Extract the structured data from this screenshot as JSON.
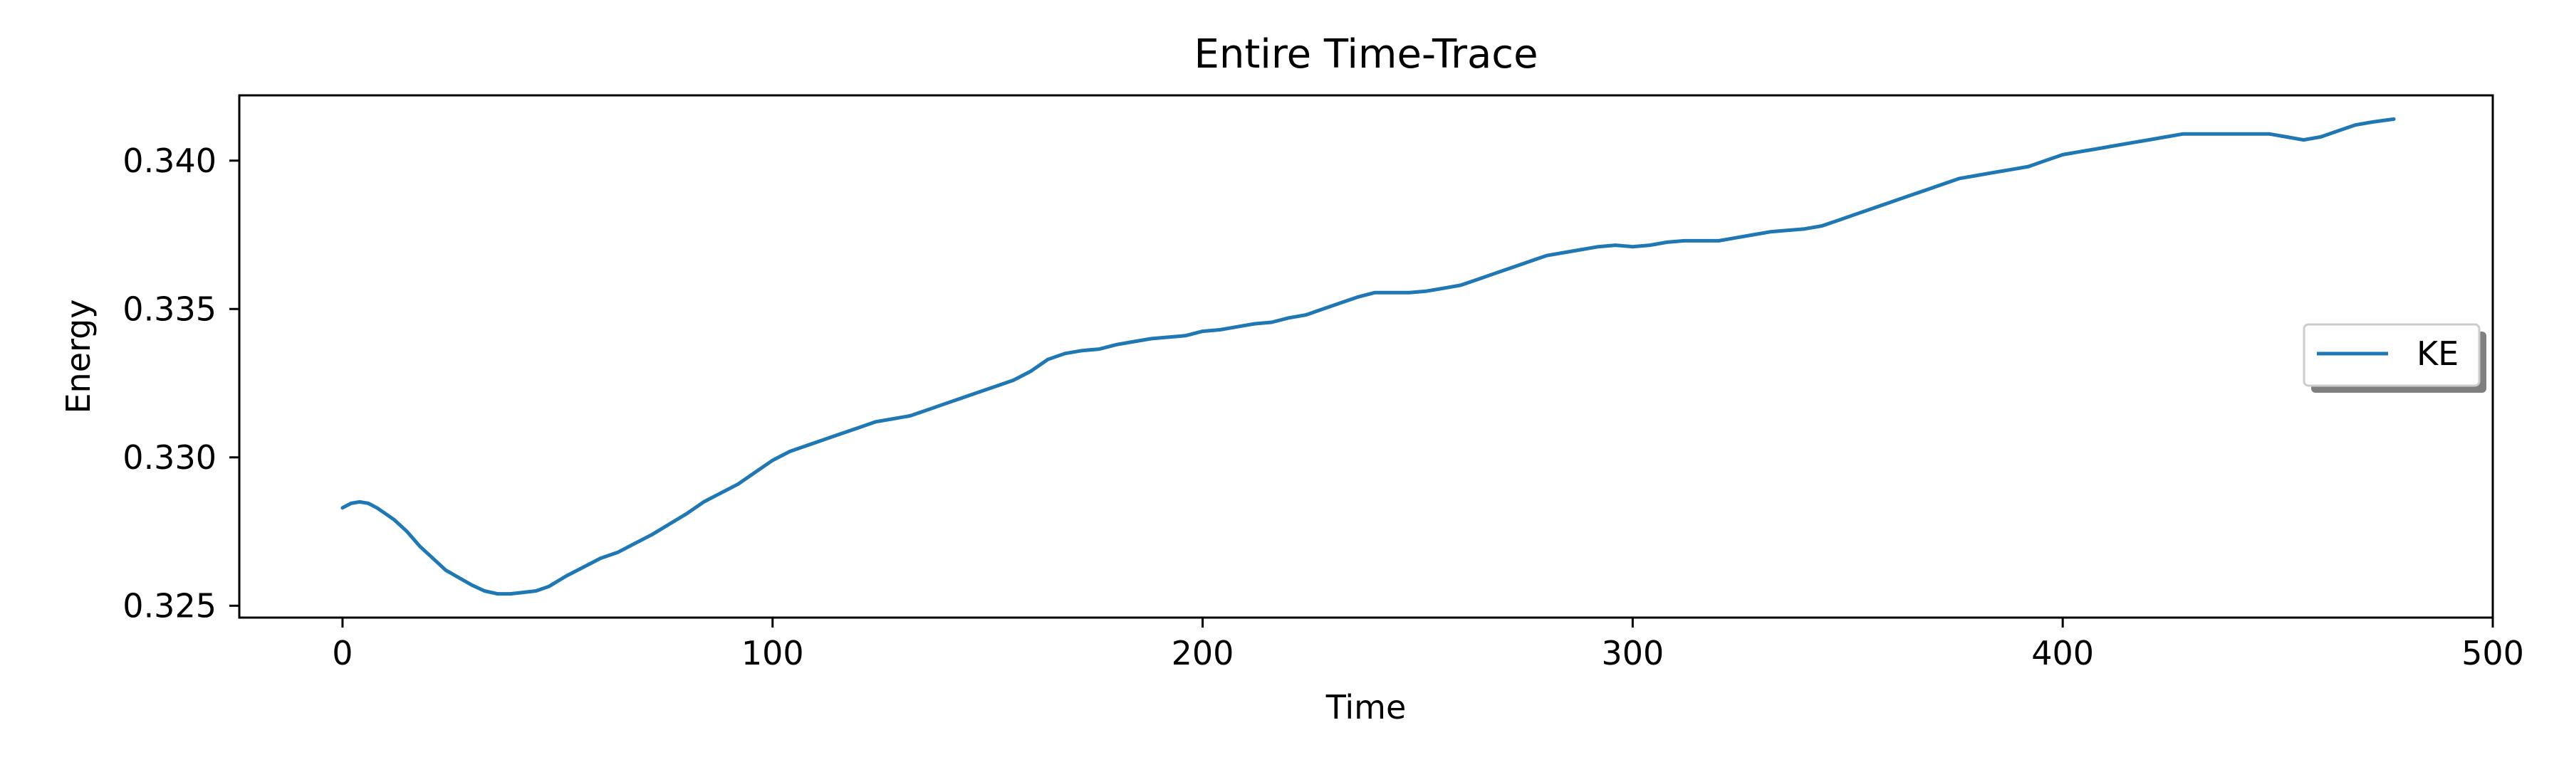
{
  "chart_data": {
    "type": "line",
    "title": "Entire Time-Trace",
    "xlabel": "Time",
    "ylabel": "Energy",
    "xlim": [
      -24,
      500
    ],
    "ylim": [
      0.3246,
      0.3422
    ],
    "xticks": [
      0,
      100,
      200,
      300,
      400,
      500
    ],
    "yticks": [
      0.325,
      0.33,
      0.335,
      0.34
    ],
    "xtick_labels": [
      "0",
      "100",
      "200",
      "300",
      "400",
      "500"
    ],
    "ytick_labels": [
      "0.325",
      "0.330",
      "0.335",
      "0.340"
    ],
    "grid": false,
    "legend_position": "center-right",
    "series": [
      {
        "name": "KE",
        "color": "#1f77b4",
        "x": [
          0,
          2,
          4,
          6,
          8,
          10,
          12,
          15,
          18,
          21,
          24,
          27,
          30,
          33,
          36,
          39,
          42,
          45,
          48,
          52,
          56,
          60,
          64,
          68,
          72,
          76,
          80,
          84,
          88,
          92,
          96,
          100,
          104,
          108,
          112,
          116,
          120,
          124,
          128,
          132,
          136,
          140,
          144,
          148,
          152,
          156,
          160,
          164,
          168,
          172,
          176,
          180,
          184,
          188,
          192,
          196,
          200,
          204,
          208,
          212,
          216,
          220,
          224,
          228,
          232,
          236,
          240,
          244,
          248,
          252,
          256,
          260,
          264,
          268,
          272,
          276,
          280,
          284,
          288,
          292,
          296,
          300,
          304,
          308,
          312,
          316,
          320,
          324,
          328,
          332,
          336,
          340,
          344,
          348,
          352,
          356,
          360,
          364,
          368,
          372,
          376,
          380,
          384,
          388,
          392,
          396,
          400,
          404,
          408,
          412,
          416,
          420,
          424,
          428,
          432,
          436,
          440,
          444,
          448,
          452,
          456,
          460,
          464,
          468,
          472,
          477
        ],
        "values": [
          0.3283,
          0.32845,
          0.3285,
          0.32845,
          0.3283,
          0.3281,
          0.3279,
          0.3275,
          0.327,
          0.3266,
          0.3262,
          0.32595,
          0.3257,
          0.3255,
          0.3254,
          0.3254,
          0.32545,
          0.3255,
          0.32565,
          0.326,
          0.3263,
          0.3266,
          0.3268,
          0.3271,
          0.3274,
          0.32775,
          0.3281,
          0.3285,
          0.3288,
          0.3291,
          0.3295,
          0.3299,
          0.3302,
          0.3304,
          0.3306,
          0.3308,
          0.331,
          0.3312,
          0.3313,
          0.3314,
          0.3316,
          0.3318,
          0.332,
          0.3322,
          0.3324,
          0.3326,
          0.3329,
          0.3333,
          0.3335,
          0.3336,
          0.33365,
          0.3338,
          0.3339,
          0.334,
          0.33405,
          0.3341,
          0.33425,
          0.3343,
          0.3344,
          0.3345,
          0.33455,
          0.3347,
          0.3348,
          0.335,
          0.3352,
          0.3354,
          0.33555,
          0.33555,
          0.33555,
          0.3356,
          0.3357,
          0.3358,
          0.336,
          0.3362,
          0.3364,
          0.3366,
          0.3368,
          0.3369,
          0.337,
          0.3371,
          0.33715,
          0.3371,
          0.33715,
          0.33725,
          0.3373,
          0.3373,
          0.3373,
          0.3374,
          0.3375,
          0.3376,
          0.33765,
          0.3377,
          0.3378,
          0.338,
          0.3382,
          0.3384,
          0.3386,
          0.3388,
          0.339,
          0.3392,
          0.3394,
          0.3395,
          0.3396,
          0.3397,
          0.3398,
          0.34,
          0.3402,
          0.3403,
          0.3404,
          0.3405,
          0.3406,
          0.3407,
          0.3408,
          0.3409,
          0.3409,
          0.3409,
          0.3409,
          0.3409,
          0.3409,
          0.3408,
          0.3407,
          0.3408,
          0.341,
          0.3412,
          0.3413,
          0.3414
        ]
      }
    ]
  }
}
